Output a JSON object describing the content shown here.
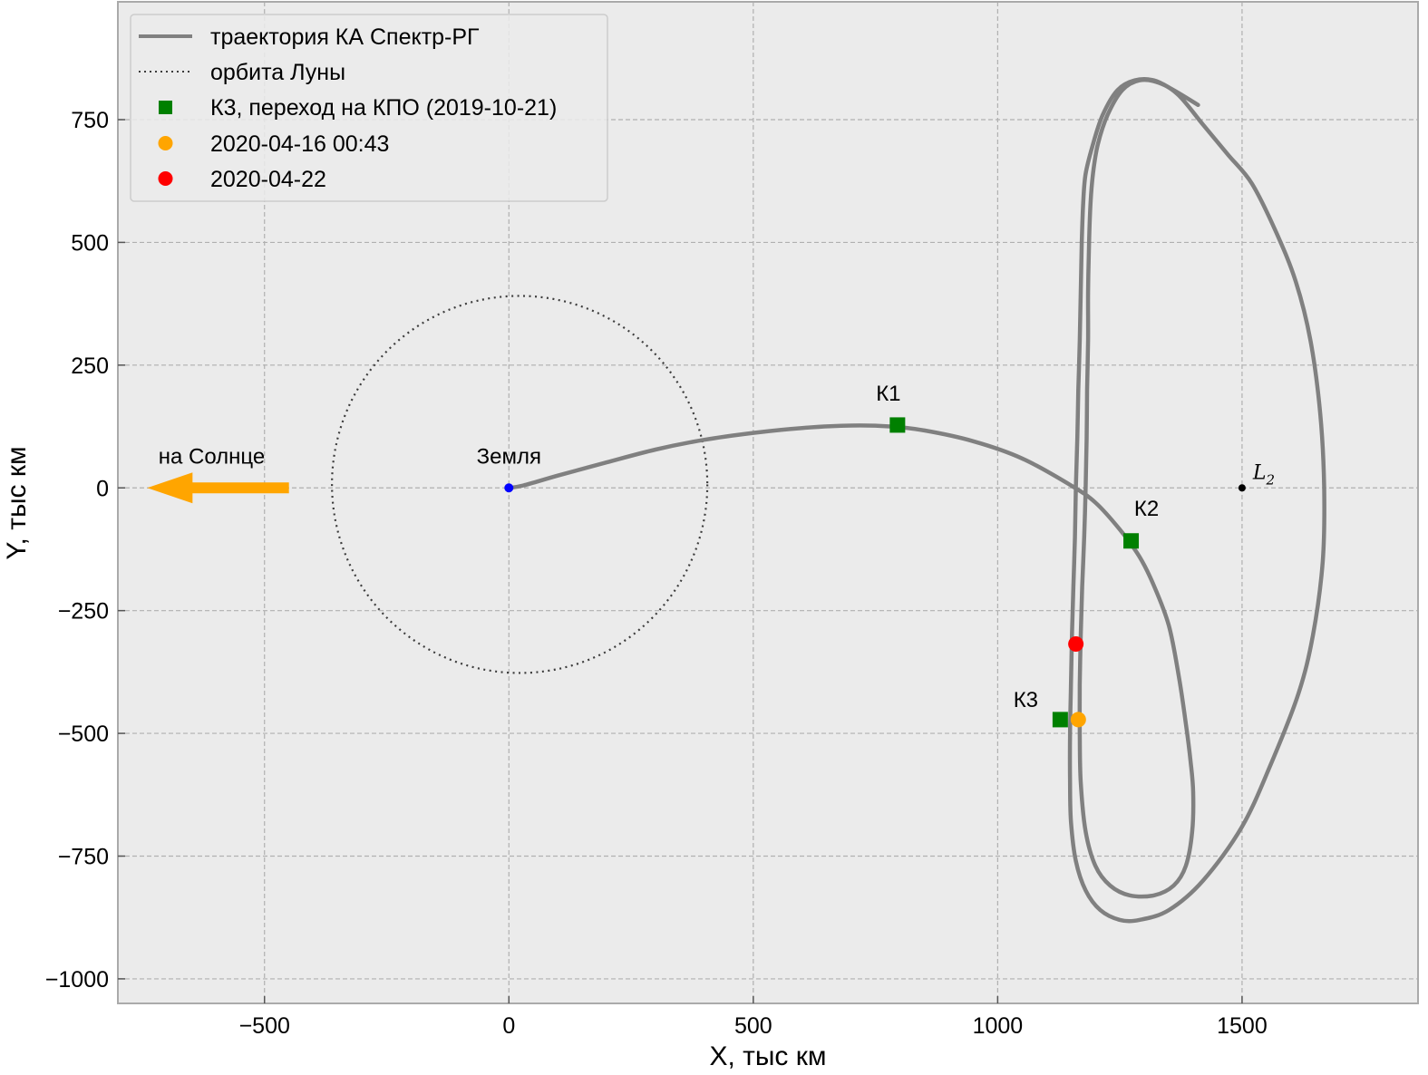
{
  "chart_data": {
    "type": "line",
    "xlabel": "X, тыс км",
    "ylabel": "Y, тыс км",
    "xlim": [
      -800,
      1860
    ],
    "ylim": [
      -1050,
      990
    ],
    "grid": true,
    "x_ticks": [
      -500,
      0,
      500,
      1000,
      1500
    ],
    "x_tick_labels": [
      "−500",
      "0",
      "500",
      "1000",
      "1500"
    ],
    "y_ticks": [
      750,
      500,
      250,
      0,
      -250,
      -500,
      -750,
      -1000
    ],
    "y_tick_labels": [
      "750",
      "500",
      "250",
      "0",
      "−250",
      "−500",
      "−750",
      "−1000"
    ],
    "legend_position": "upper-left",
    "colors": {
      "background": "#ebebeb",
      "trajectory": "#808080",
      "moon_orbit": "#3c3c3c",
      "maneuver": "#008000",
      "point_apr16": "#ffa500",
      "point_apr22": "#ff0000",
      "earth": "#0000ff",
      "sun_arrow": "#ffa500",
      "l2": "#000000",
      "grid": "#b0b0b0"
    },
    "series": [
      {
        "name": "траектория КА Спектр-РГ",
        "style": "solid",
        "points": [
          [
            0,
            0
          ],
          [
            30,
            5
          ],
          [
            100,
            25
          ],
          [
            200,
            52
          ],
          [
            300,
            78
          ],
          [
            400,
            98
          ],
          [
            500,
            112
          ],
          [
            600,
            122
          ],
          [
            700,
            127
          ],
          [
            780,
            125
          ],
          [
            850,
            117
          ],
          [
            950,
            95
          ],
          [
            1050,
            60
          ],
          [
            1150,
            5
          ],
          [
            1200,
            -30
          ],
          [
            1250,
            -85
          ],
          [
            1290,
            -140
          ],
          [
            1320,
            -200
          ],
          [
            1350,
            -280
          ],
          [
            1370,
            -380
          ],
          [
            1385,
            -480
          ],
          [
            1395,
            -560
          ],
          [
            1400,
            -620
          ],
          [
            1398,
            -700
          ],
          [
            1385,
            -770
          ],
          [
            1360,
            -810
          ],
          [
            1320,
            -830
          ],
          [
            1270,
            -830
          ],
          [
            1230,
            -810
          ],
          [
            1200,
            -770
          ],
          [
            1180,
            -700
          ],
          [
            1170,
            -600
          ],
          [
            1168,
            -500
          ],
          [
            1168,
            -400
          ],
          [
            1170,
            -300
          ],
          [
            1173,
            -200
          ],
          [
            1177,
            -100
          ],
          [
            1180,
            0
          ],
          [
            1182,
            100
          ],
          [
            1183,
            200
          ],
          [
            1185,
            300
          ],
          [
            1185,
            400
          ],
          [
            1187,
            500
          ],
          [
            1190,
            580
          ],
          [
            1195,
            640
          ],
          [
            1205,
            700
          ],
          [
            1225,
            760
          ],
          [
            1255,
            810
          ],
          [
            1290,
            830
          ],
          [
            1330,
            825
          ],
          [
            1370,
            800
          ],
          [
            1420,
            740
          ],
          [
            1470,
            680
          ],
          [
            1520,
            620
          ],
          [
            1570,
            520
          ],
          [
            1610,
            420
          ],
          [
            1640,
            300
          ],
          [
            1660,
            150
          ],
          [
            1668,
            0
          ],
          [
            1665,
            -150
          ],
          [
            1645,
            -300
          ],
          [
            1615,
            -420
          ],
          [
            1560,
            -560
          ],
          [
            1500,
            -690
          ],
          [
            1420,
            -800
          ],
          [
            1350,
            -860
          ],
          [
            1290,
            -880
          ],
          [
            1250,
            -880
          ],
          [
            1210,
            -860
          ],
          [
            1180,
            -820
          ],
          [
            1160,
            -760
          ],
          [
            1150,
            -680
          ],
          [
            1148,
            -600
          ],
          [
            1148,
            -500
          ],
          [
            1150,
            -400
          ],
          [
            1152,
            -300
          ],
          [
            1155,
            -200
          ],
          [
            1158,
            -100
          ],
          [
            1160,
            0
          ],
          [
            1163,
            100
          ],
          [
            1165,
            200
          ],
          [
            1168,
            300
          ],
          [
            1170,
            400
          ],
          [
            1172,
            500
          ],
          [
            1175,
            580
          ],
          [
            1180,
            640
          ],
          [
            1195,
            700
          ],
          [
            1215,
            760
          ],
          [
            1245,
            810
          ],
          [
            1280,
            830
          ],
          [
            1320,
            830
          ],
          [
            1360,
            810
          ],
          [
            1410,
            780
          ]
        ]
      },
      {
        "name": "орбита Луны",
        "style": "dotted",
        "center": [
          22,
          7
        ],
        "radius": 384
      }
    ],
    "markers": [
      {
        "name": "К3, переход на КПО (2019-10-21)",
        "shape": "square",
        "color": "#008000",
        "points": [
          [
            795,
            128
          ],
          [
            1273,
            -108
          ],
          [
            1128,
            -472
          ]
        ]
      },
      {
        "name": "2020-04-16 00:43",
        "shape": "circle",
        "color": "#ffa500",
        "points": [
          [
            1165,
            -472
          ]
        ]
      },
      {
        "name": "2020-04-22",
        "shape": "circle",
        "color": "#ff0000",
        "points": [
          [
            1160,
            -318
          ]
        ]
      }
    ],
    "annotations": [
      {
        "text": "К1",
        "x": 795,
        "y": 128
      },
      {
        "text": "К2",
        "x": 1273,
        "y": -108
      },
      {
        "text": "К3",
        "x": 1128,
        "y": -472
      },
      {
        "text": "Земля",
        "x": 0,
        "y": 0
      },
      {
        "text": "на Солнце",
        "x": -730,
        "y": 0
      },
      {
        "text": "L",
        "sub": "2",
        "x": 1500,
        "y": 0
      }
    ],
    "sun_arrow": {
      "from": [
        -450,
        0
      ],
      "to": [
        -740,
        0
      ]
    },
    "earth_point": [
      0,
      0
    ],
    "l2_point": [
      1500,
      0
    ]
  }
}
